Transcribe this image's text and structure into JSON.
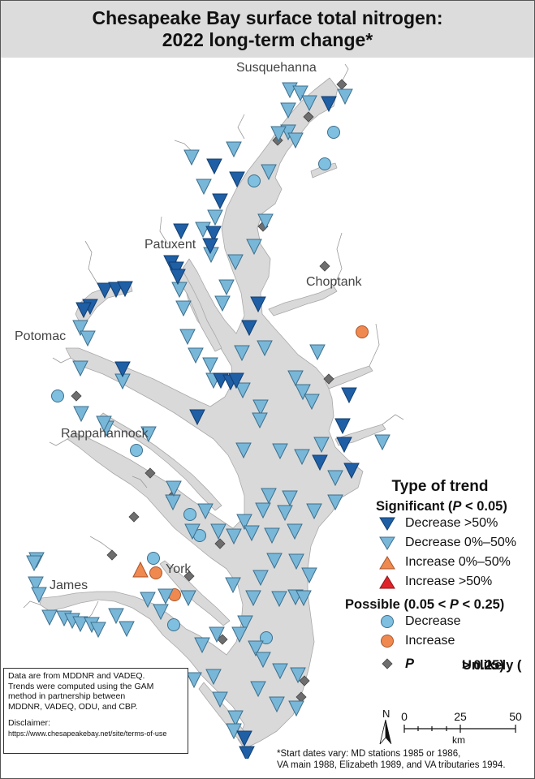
{
  "title": {
    "line1": "Chesapeake Bay surface total nitrogen:",
    "line2": "2022 long-term change*"
  },
  "place_labels": {
    "susquehanna": "Susquehanna",
    "patuxent": "Patuxent",
    "choptank": "Choptank",
    "potomac": "Potomac",
    "rappahannock": "Rappahannock",
    "york": "York",
    "james": "James"
  },
  "legend": {
    "title": "Type of trend",
    "significant_prefix": "Significant (",
    "significant_p": "P",
    "significant_suffix": " < 0.05)",
    "decrease_gt50": "Decrease >50%",
    "decrease_0_50": "Decrease 0%–50%",
    "increase_0_50": "Increase 0%–50%",
    "increase_gt50": "Increase >50%",
    "possible_prefix": "Possible (0.05 < ",
    "possible_p": "P",
    "possible_suffix": " < 0.25)",
    "possible_decrease": "Decrease",
    "possible_increase": "Increase",
    "unlikely_label": "Unlikely (",
    "unlikely_p": "P",
    "unlikely_suffix": " > 0.25)"
  },
  "colors": {
    "water": "#d9d9d9",
    "dark_blue_triangle": "#1f5fa6",
    "light_blue_triangle": "#79b7d9",
    "orange_triangle": "#f0894f",
    "red_triangle": "#e0232a",
    "light_blue_circle": "#7fbfe0",
    "orange_circle": "#f0894f",
    "diamond": "#6e6e6e"
  },
  "data_box": {
    "line1": "Data are from MDDNR and VADEQ.",
    "line2": "Trends were computed using the GAM",
    "line3": "method in partnership between",
    "line4": "MDDNR, VADEQ, ODU, and CBP.",
    "disclaimer": "Disclaimer:",
    "url": "https://www.chesapeakebay.net/site/terms-of-use"
  },
  "scale": {
    "north": "N",
    "t0": "0",
    "t25": "25",
    "t50": "50",
    "unit": "km"
  },
  "footnote": {
    "line1": "*Start dates vary: MD stations 1985 or 1986,",
    "line2": "VA main 1988, Elizabeth 1989, and VA tributaries 1994."
  },
  "stations": {
    "decrease_gt50": [
      [
        404,
        126
      ],
      [
        263,
        203
      ],
      [
        291,
        219
      ],
      [
        270,
        246
      ],
      [
        222,
        283
      ],
      [
        262,
        286
      ],
      [
        258,
        301
      ],
      [
        210,
        322
      ],
      [
        216,
        330
      ],
      [
        218,
        339
      ],
      [
        128,
        356
      ],
      [
        142,
        355
      ],
      [
        153,
        354
      ],
      [
        110,
        376
      ],
      [
        102,
        380
      ],
      [
        317,
        373
      ],
      [
        306,
        402
      ],
      [
        150,
        453
      ],
      [
        271,
        467
      ],
      [
        283,
        469
      ],
      [
        290,
        467
      ],
      [
        242,
        512
      ],
      [
        429,
        485
      ],
      [
        421,
        523
      ],
      [
        423,
        546
      ],
      [
        393,
        568
      ],
      [
        432,
        578
      ],
      [
        300,
        908
      ],
      [
        303,
        927
      ]
    ],
    "decrease_0_50": [
      [
        424,
        117
      ],
      [
        356,
        109
      ],
      [
        369,
        113
      ],
      [
        354,
        134
      ],
      [
        380,
        125
      ],
      [
        354,
        161
      ],
      [
        342,
        163
      ],
      [
        363,
        171
      ],
      [
        330,
        210
      ],
      [
        287,
        182
      ],
      [
        235,
        192
      ],
      [
        250,
        228
      ],
      [
        264,
        266
      ],
      [
        249,
        281
      ],
      [
        259,
        312
      ],
      [
        289,
        321
      ],
      [
        326,
        271
      ],
      [
        312,
        302
      ],
      [
        278,
        352
      ],
      [
        273,
        372
      ],
      [
        220,
        355
      ],
      [
        225,
        378
      ],
      [
        230,
        413
      ],
      [
        240,
        436
      ],
      [
        258,
        448
      ],
      [
        262,
        467
      ],
      [
        297,
        433
      ],
      [
        325,
        427
      ],
      [
        390,
        432
      ],
      [
        363,
        464
      ],
      [
        372,
        481
      ],
      [
        383,
        493
      ],
      [
        298,
        479
      ],
      [
        320,
        500
      ],
      [
        319,
        516
      ],
      [
        98,
        402
      ],
      [
        107,
        415
      ],
      [
        98,
        452
      ],
      [
        150,
        468
      ],
      [
        99,
        508
      ],
      [
        130,
        526
      ],
      [
        182,
        533
      ],
      [
        299,
        553
      ],
      [
        344,
        554
      ],
      [
        371,
        561
      ],
      [
        395,
        546
      ],
      [
        412,
        617
      ],
      [
        386,
        628
      ],
      [
        350,
        630
      ],
      [
        323,
        627
      ],
      [
        356,
        612
      ],
      [
        330,
        609
      ],
      [
        412,
        587
      ],
      [
        470,
        543
      ],
      [
        212,
        617
      ],
      [
        252,
        628
      ],
      [
        236,
        653
      ],
      [
        268,
        653
      ],
      [
        300,
        641
      ],
      [
        309,
        655
      ],
      [
        287,
        659
      ],
      [
        334,
        658
      ],
      [
        362,
        653
      ],
      [
        364,
        690
      ],
      [
        380,
        707
      ],
      [
        337,
        689
      ],
      [
        320,
        710
      ],
      [
        343,
        736
      ],
      [
        363,
        734
      ],
      [
        373,
        735
      ],
      [
        311,
        735
      ],
      [
        286,
        719
      ],
      [
        301,
        766
      ],
      [
        294,
        780
      ],
      [
        266,
        780
      ],
      [
        248,
        793
      ],
      [
        314,
        797
      ],
      [
        323,
        811
      ],
      [
        344,
        825
      ],
      [
        366,
        830
      ],
      [
        317,
        847
      ],
      [
        364,
        871
      ],
      [
        340,
        866
      ],
      [
        270,
        860
      ],
      [
        262,
        832
      ],
      [
        238,
        836
      ],
      [
        289,
        883
      ],
      [
        287,
        899
      ],
      [
        231,
        735
      ],
      [
        203,
        733
      ],
      [
        181,
        737
      ],
      [
        142,
        757
      ],
      [
        155,
        773
      ],
      [
        60,
        759
      ],
      [
        78,
        760
      ],
      [
        88,
        763
      ],
      [
        98,
        767
      ],
      [
        112,
        768
      ],
      [
        120,
        774
      ],
      [
        44,
        688
      ],
      [
        41,
        692
      ],
      [
        43,
        718
      ],
      [
        47,
        731
      ],
      [
        197,
        752
      ],
      [
        127,
        520
      ],
      [
        213,
        600
      ]
    ],
    "increase_0_50": [
      [
        172,
        702
      ]
    ],
    "increase_gt50": [],
    "possible_decrease": [
      [
        410,
        162
      ],
      [
        312,
        222
      ],
      [
        399,
        201
      ],
      [
        70,
        487
      ],
      [
        167,
        554
      ],
      [
        233,
        633
      ],
      [
        245,
        659
      ],
      [
        188,
        687
      ],
      [
        213,
        769
      ],
      [
        327,
        785
      ]
    ],
    "possible_increase": [
      [
        445,
        408
      ],
      [
        191,
        705
      ],
      [
        214,
        732
      ]
    ],
    "unlikely": [
      [
        420,
        103
      ],
      [
        341,
        172
      ],
      [
        379,
        143
      ],
      [
        323,
        278
      ],
      [
        399,
        327
      ],
      [
        404,
        466
      ],
      [
        93,
        487
      ],
      [
        184,
        582
      ],
      [
        210,
        612
      ],
      [
        164,
        636
      ],
      [
        137,
        683
      ],
      [
        270,
        669
      ],
      [
        232,
        709
      ],
      [
        273,
        787
      ],
      [
        374,
        838
      ],
      [
        370,
        858
      ]
    ]
  }
}
